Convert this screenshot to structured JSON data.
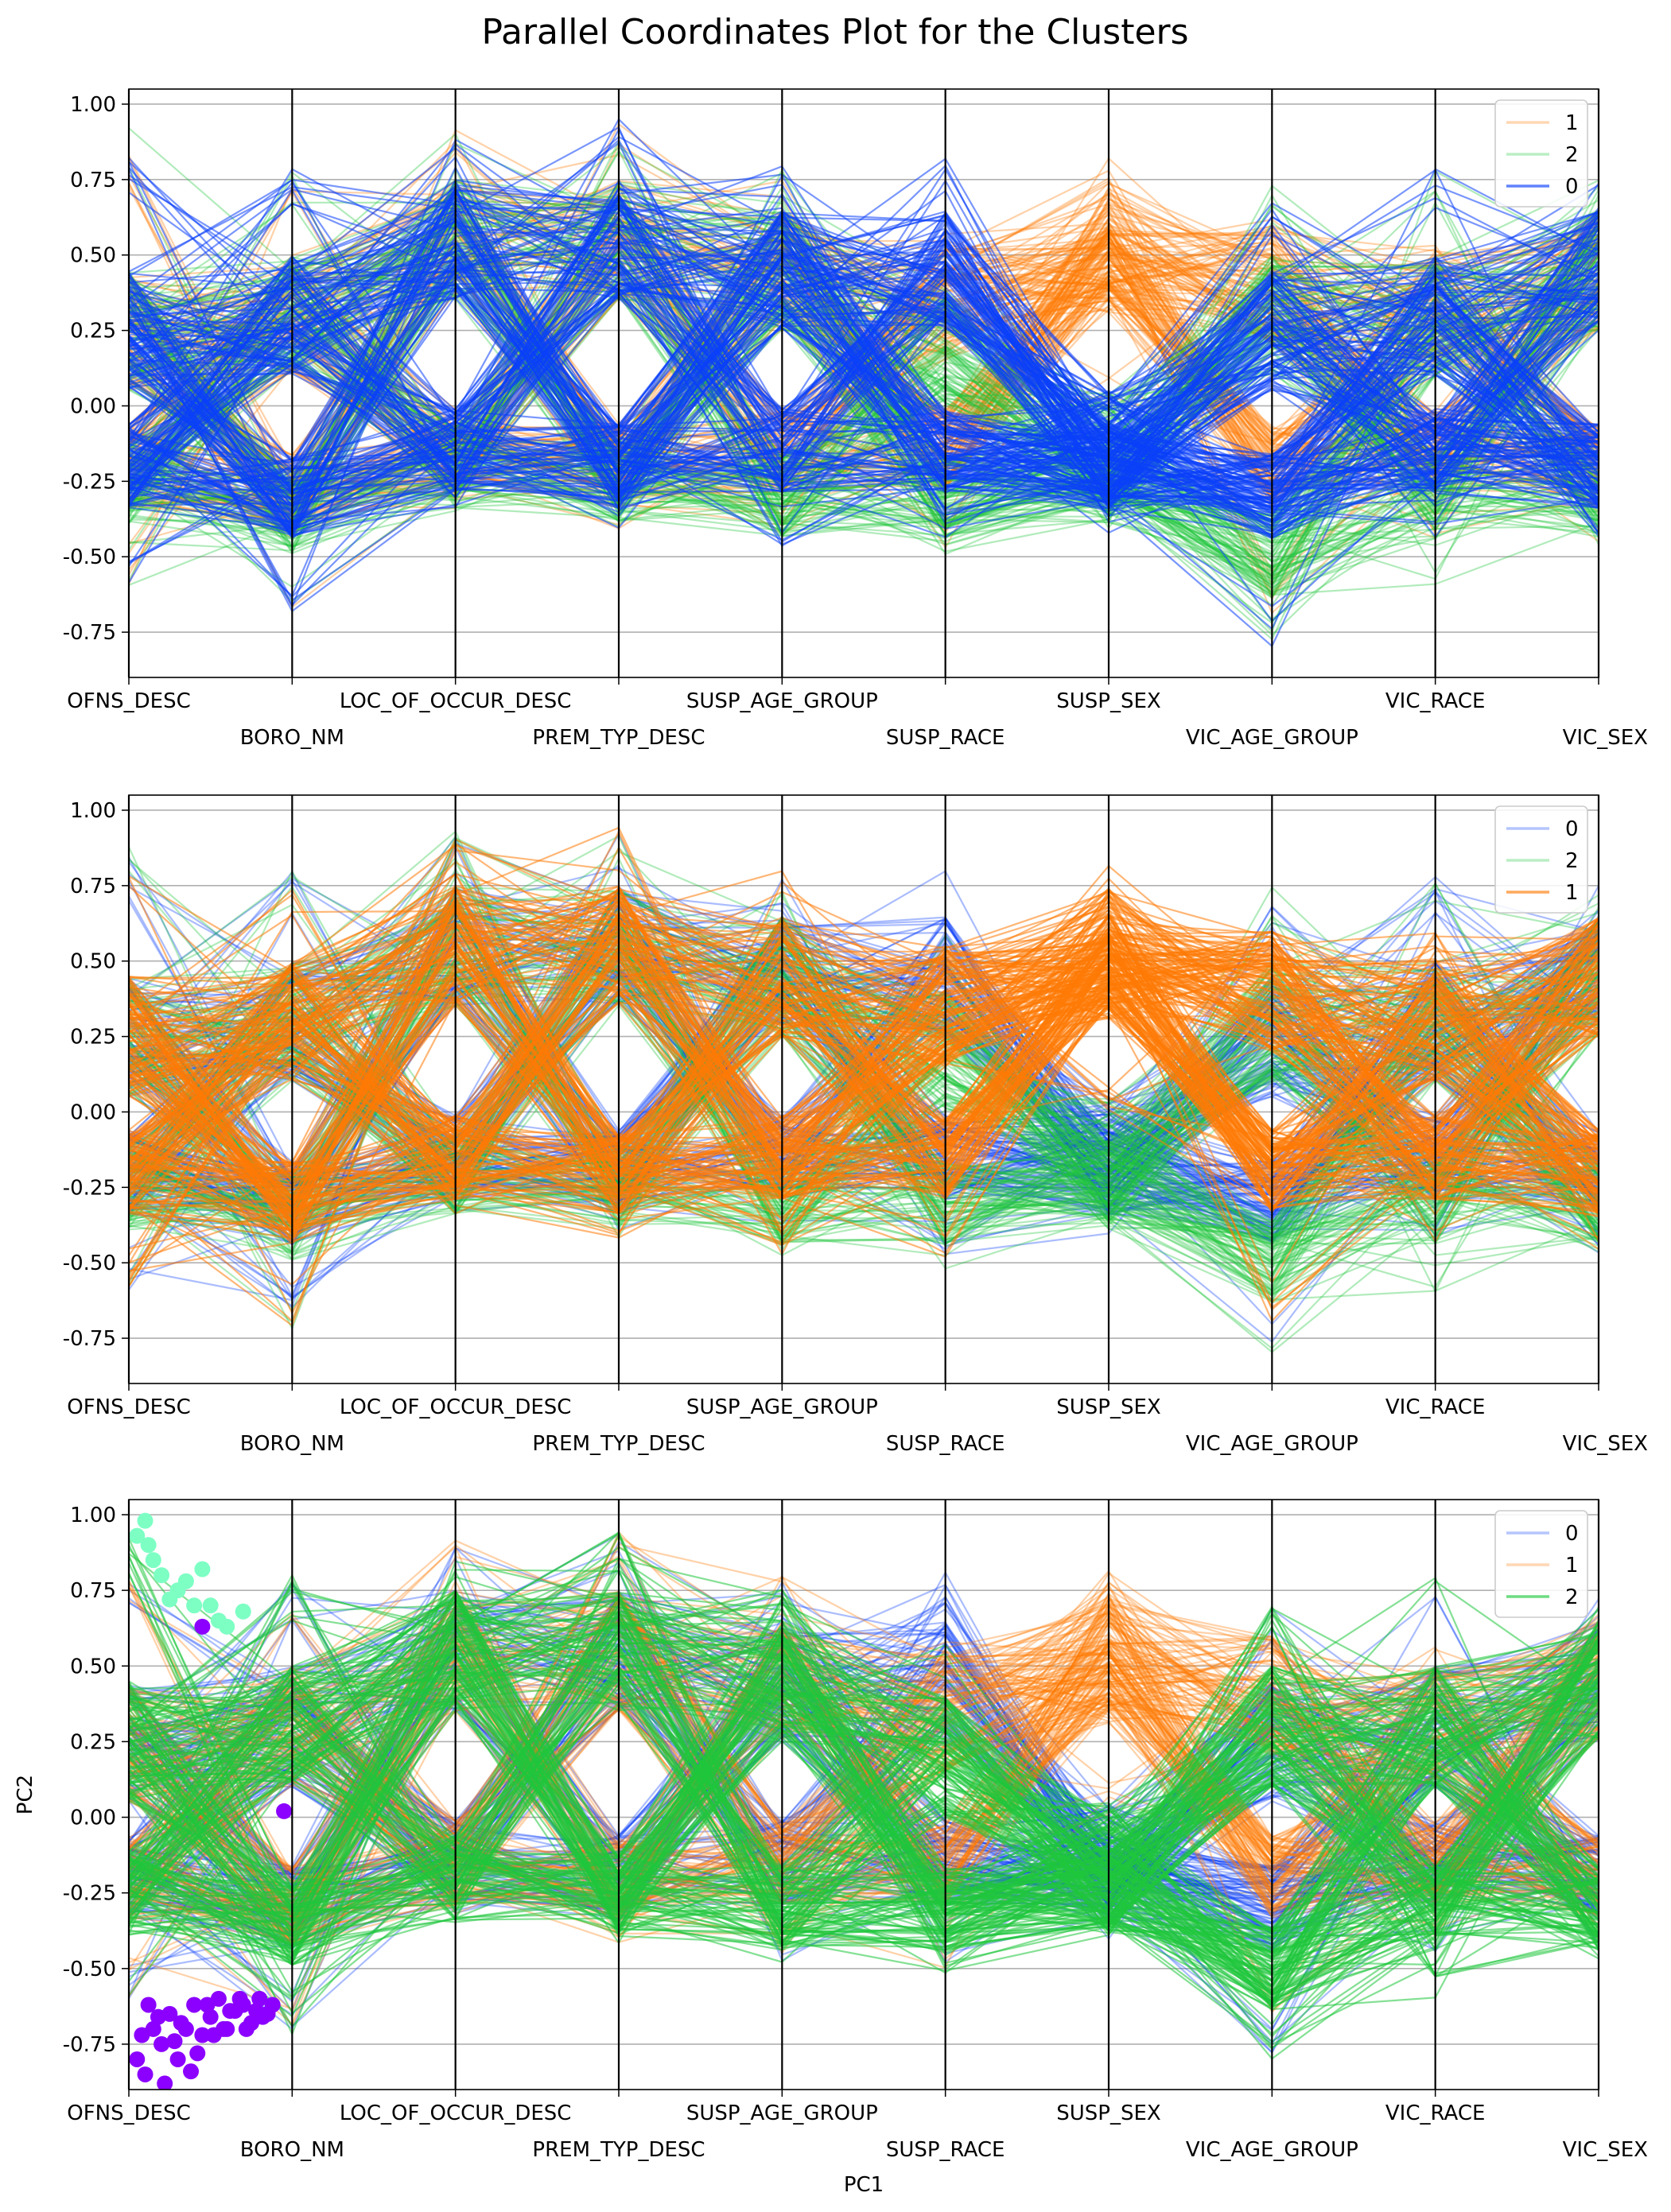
{
  "figure": {
    "title": "Parallel Coordinates Plot for the Clusters"
  },
  "colors": {
    "cluster_0": "#0b3ffa",
    "cluster_1": "#ff7a06",
    "cluster_2": "#1fc73d",
    "scatter_purple": "#8b00ff",
    "scatter_mint": "#7dffc4",
    "axis_line": "#000000",
    "grid": "#b0b0b0"
  },
  "chart_data": [
    {
      "type": "line",
      "subtype": "parallel_coordinates",
      "axes": [
        "OFNS_DESC",
        "BORO_NM",
        "LOC_OF_OCCUR_DESC",
        "PREM_TYP_DESC",
        "SUSP_AGE_GROUP",
        "SUSP_RACE",
        "SUSP_SEX",
        "VIC_AGE_GROUP",
        "VIC_RACE",
        "VIC_SEX"
      ],
      "ylim": [
        -0.9,
        1.05
      ],
      "yticks": [
        "1.00",
        "0.75",
        "0.50",
        "0.25",
        "0.00",
        "-0.25",
        "-0.50",
        "-0.75"
      ],
      "grid": "horizontal",
      "legend": {
        "position": "top-right",
        "entries": [
          "1",
          "2",
          "0"
        ]
      },
      "draw_order": [
        "1",
        "2",
        "0"
      ],
      "xlabel": "",
      "ylabel": "",
      "series": [
        {
          "name": "0",
          "color": "cluster_0",
          "upper": [
            0.25,
            0.3,
            0.55,
            0.55,
            0.45,
            0.45,
            -0.15,
            0.25,
            0.3,
            0.45
          ],
          "lower": [
            -0.2,
            -0.3,
            -0.15,
            -0.2,
            -0.15,
            -0.15,
            -0.2,
            -0.3,
            -0.15,
            -0.2
          ],
          "range_upper": [
            0.85,
            0.8,
            0.93,
            0.95,
            0.8,
            0.83,
            -0.1,
            0.7,
            0.8,
            0.75
          ],
          "range_lower": [
            -0.6,
            -0.72,
            -0.35,
            -0.42,
            -0.48,
            -0.48,
            -0.43,
            -0.8,
            -0.45,
            -0.47
          ]
        },
        {
          "name": "1",
          "color": "cluster_1",
          "upper": [
            0.25,
            0.3,
            0.55,
            0.55,
            0.45,
            0.35,
            0.55,
            0.4,
            0.3,
            0.45
          ],
          "lower": [
            -0.2,
            -0.3,
            -0.15,
            -0.2,
            -0.15,
            -0.15,
            0.45,
            -0.2,
            -0.15,
            -0.2
          ],
          "range_upper": [
            0.85,
            0.8,
            0.93,
            0.95,
            0.8,
            0.6,
            0.82,
            0.62,
            0.6,
            0.7
          ],
          "range_lower": [
            -0.6,
            -0.72,
            -0.35,
            -0.42,
            -0.48,
            -0.5,
            0.0,
            -0.7,
            -0.45,
            -0.47
          ]
        },
        {
          "name": "2",
          "color": "cluster_2",
          "upper": [
            0.25,
            0.3,
            0.55,
            0.55,
            0.45,
            0.2,
            -0.15,
            0.3,
            0.3,
            0.45
          ],
          "lower": [
            -0.25,
            -0.35,
            -0.2,
            -0.25,
            -0.3,
            -0.3,
            -0.25,
            -0.5,
            -0.3,
            -0.3
          ],
          "range_upper": [
            0.93,
            0.8,
            0.93,
            0.95,
            0.8,
            0.6,
            -0.1,
            0.75,
            0.8,
            0.75
          ],
          "range_lower": [
            -0.6,
            -0.72,
            -0.35,
            -0.42,
            -0.48,
            -0.52,
            -0.43,
            -0.8,
            -0.6,
            -0.47
          ]
        }
      ]
    },
    {
      "type": "line",
      "subtype": "parallel_coordinates",
      "axes": [
        "OFNS_DESC",
        "BORO_NM",
        "LOC_OF_OCCUR_DESC",
        "PREM_TYP_DESC",
        "SUSP_AGE_GROUP",
        "SUSP_RACE",
        "SUSP_SEX",
        "VIC_AGE_GROUP",
        "VIC_RACE",
        "VIC_SEX"
      ],
      "ylim": [
        -0.9,
        1.05
      ],
      "yticks": [
        "1.00",
        "0.75",
        "0.50",
        "0.25",
        "0.00",
        "-0.25",
        "-0.50",
        "-0.75"
      ],
      "grid": "horizontal",
      "legend": {
        "position": "top-right",
        "entries": [
          "0",
          "2",
          "1"
        ]
      },
      "draw_order": [
        "0",
        "2",
        "1"
      ],
      "xlabel": "",
      "ylabel": "",
      "series": [
        {
          "name": "0",
          "color": "cluster_0",
          "upper": [
            0.25,
            0.3,
            0.55,
            0.55,
            0.45,
            0.45,
            -0.15,
            0.25,
            0.3,
            0.45
          ],
          "lower": [
            -0.2,
            -0.3,
            -0.15,
            -0.2,
            -0.15,
            -0.15,
            -0.2,
            -0.3,
            -0.15,
            -0.2
          ],
          "range_upper": [
            0.85,
            0.8,
            0.93,
            0.95,
            0.8,
            0.83,
            -0.1,
            0.7,
            0.8,
            0.75
          ],
          "range_lower": [
            -0.6,
            -0.72,
            -0.35,
            -0.42,
            -0.48,
            -0.48,
            -0.43,
            -0.8,
            -0.45,
            -0.47
          ]
        },
        {
          "name": "2",
          "color": "cluster_2",
          "upper": [
            0.25,
            0.3,
            0.55,
            0.55,
            0.45,
            0.2,
            -0.15,
            0.3,
            0.3,
            0.45
          ],
          "lower": [
            -0.25,
            -0.35,
            -0.2,
            -0.25,
            -0.3,
            -0.3,
            -0.25,
            -0.5,
            -0.3,
            -0.3
          ],
          "range_upper": [
            0.93,
            0.8,
            0.93,
            0.95,
            0.8,
            0.6,
            -0.1,
            0.75,
            0.8,
            0.75
          ],
          "range_lower": [
            -0.6,
            -0.72,
            -0.35,
            -0.42,
            -0.48,
            -0.52,
            -0.43,
            -0.8,
            -0.6,
            -0.47
          ]
        },
        {
          "name": "1",
          "color": "cluster_1",
          "upper": [
            0.25,
            0.3,
            0.55,
            0.55,
            0.45,
            0.35,
            0.55,
            0.4,
            0.3,
            0.45
          ],
          "lower": [
            -0.2,
            -0.3,
            -0.15,
            -0.2,
            -0.15,
            -0.15,
            0.45,
            -0.2,
            -0.15,
            -0.2
          ],
          "range_upper": [
            0.85,
            0.8,
            0.93,
            0.95,
            0.8,
            0.6,
            0.82,
            0.62,
            0.6,
            0.7
          ],
          "range_lower": [
            -0.6,
            -0.72,
            -0.35,
            -0.42,
            -0.48,
            -0.5,
            0.0,
            -0.7,
            -0.45,
            -0.47
          ]
        }
      ]
    },
    {
      "type": "line",
      "subtype": "parallel_coordinates",
      "axes": [
        "OFNS_DESC",
        "BORO_NM",
        "LOC_OF_OCCUR_DESC",
        "PREM_TYP_DESC",
        "SUSP_AGE_GROUP",
        "SUSP_RACE",
        "SUSP_SEX",
        "VIC_AGE_GROUP",
        "VIC_RACE",
        "VIC_SEX"
      ],
      "ylim": [
        -0.9,
        1.05
      ],
      "yticks": [
        "1.00",
        "0.75",
        "0.50",
        "0.25",
        "0.00",
        "-0.25",
        "-0.50",
        "-0.75"
      ],
      "grid": "horizontal",
      "legend": {
        "position": "top-right",
        "entries": [
          "0",
          "1",
          "2"
        ]
      },
      "draw_order": [
        "0",
        "1",
        "2"
      ],
      "xlabel": "PC1",
      "ylabel": "PC2",
      "scatter": [
        {
          "color": "scatter_purple",
          "points": [
            [
              0.05,
              -0.8
            ],
            [
              0.1,
              -0.85
            ],
            [
              0.15,
              -0.7
            ],
            [
              0.2,
              -0.75
            ],
            [
              0.25,
              -0.65
            ],
            [
              0.3,
              -0.8
            ],
            [
              0.35,
              -0.7
            ],
            [
              0.4,
              -0.62
            ],
            [
              0.45,
              -0.72
            ],
            [
              0.5,
              -0.66
            ],
            [
              0.55,
              -0.6
            ],
            [
              0.6,
              -0.7
            ],
            [
              0.65,
              -0.64
            ],
            [
              0.7,
              -0.62
            ],
            [
              0.75,
              -0.68
            ],
            [
              0.8,
              -0.6
            ],
            [
              0.85,
              -0.65
            ],
            [
              0.12,
              -0.62
            ],
            [
              0.22,
              -0.88
            ],
            [
              0.32,
              -0.68
            ],
            [
              0.42,
              -0.78
            ],
            [
              0.52,
              -0.72
            ],
            [
              0.62,
              -0.64
            ],
            [
              0.72,
              -0.7
            ],
            [
              0.82,
              -0.66
            ],
            [
              0.08,
              -0.72
            ],
            [
              0.18,
              -0.66
            ],
            [
              0.28,
              -0.74
            ],
            [
              0.38,
              -0.84
            ],
            [
              0.48,
              -0.62
            ],
            [
              0.58,
              -0.7
            ],
            [
              0.68,
              -0.6
            ],
            [
              0.78,
              -0.64
            ],
            [
              0.88,
              -0.62
            ],
            [
              0.45,
              0.63
            ],
            [
              0.95,
              0.02
            ]
          ]
        },
        {
          "color": "scatter_mint",
          "points": [
            [
              0.05,
              0.93
            ],
            [
              0.1,
              0.98
            ],
            [
              0.15,
              0.85
            ],
            [
              0.2,
              0.8
            ],
            [
              0.3,
              0.75
            ],
            [
              0.35,
              0.78
            ],
            [
              0.4,
              0.7
            ],
            [
              0.45,
              0.82
            ],
            [
              0.5,
              0.7
            ],
            [
              0.55,
              0.65
            ],
            [
              0.6,
              0.63
            ],
            [
              0.7,
              0.68
            ],
            [
              0.12,
              0.9
            ],
            [
              0.25,
              0.72
            ]
          ]
        }
      ],
      "series": [
        {
          "name": "0",
          "color": "cluster_0",
          "upper": [
            0.25,
            0.3,
            0.55,
            0.55,
            0.45,
            0.45,
            -0.15,
            0.25,
            0.3,
            0.45
          ],
          "lower": [
            -0.2,
            -0.3,
            -0.15,
            -0.2,
            -0.15,
            -0.15,
            -0.2,
            -0.3,
            -0.15,
            -0.2
          ],
          "range_upper": [
            0.85,
            0.8,
            0.93,
            0.95,
            0.8,
            0.83,
            -0.1,
            0.7,
            0.8,
            0.75
          ],
          "range_lower": [
            -0.6,
            -0.72,
            -0.35,
            -0.42,
            -0.48,
            -0.48,
            -0.43,
            -0.8,
            -0.45,
            -0.47
          ]
        },
        {
          "name": "1",
          "color": "cluster_1",
          "upper": [
            0.25,
            0.3,
            0.55,
            0.55,
            0.45,
            0.35,
            0.55,
            0.4,
            0.3,
            0.45
          ],
          "lower": [
            -0.2,
            -0.3,
            -0.15,
            -0.2,
            -0.15,
            -0.15,
            0.45,
            -0.2,
            -0.15,
            -0.2
          ],
          "range_upper": [
            0.85,
            0.8,
            0.93,
            0.95,
            0.8,
            0.6,
            0.82,
            0.62,
            0.6,
            0.7
          ],
          "range_lower": [
            -0.6,
            -0.72,
            -0.35,
            -0.42,
            -0.48,
            -0.5,
            0.0,
            -0.7,
            -0.45,
            -0.47
          ]
        },
        {
          "name": "2",
          "color": "cluster_2",
          "upper": [
            0.25,
            0.3,
            0.55,
            0.55,
            0.45,
            0.2,
            -0.15,
            0.3,
            0.3,
            0.45
          ],
          "lower": [
            -0.25,
            -0.35,
            -0.2,
            -0.25,
            -0.3,
            -0.3,
            -0.25,
            -0.5,
            -0.3,
            -0.3
          ],
          "range_upper": [
            0.93,
            0.8,
            0.93,
            0.95,
            0.8,
            0.6,
            -0.1,
            0.75,
            0.8,
            0.75
          ],
          "range_lower": [
            -0.6,
            -0.72,
            -0.35,
            -0.42,
            -0.48,
            -0.52,
            -0.43,
            -0.8,
            -0.6,
            -0.47
          ]
        }
      ]
    }
  ]
}
